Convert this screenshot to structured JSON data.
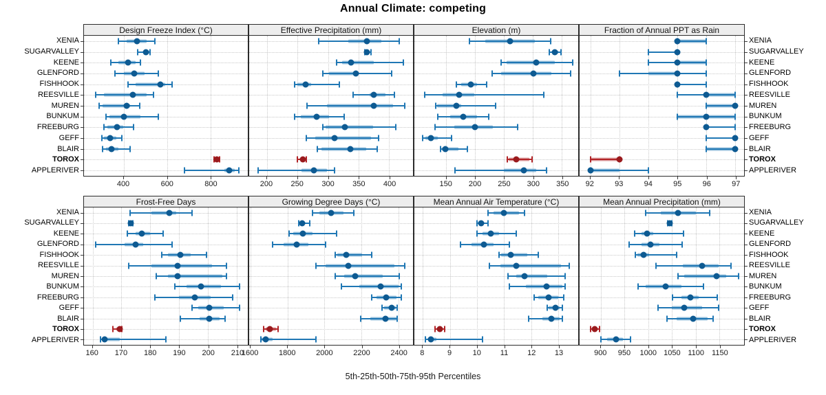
{
  "title": "Annual Climate: competing",
  "footer": "5th-25th-50th-75th-95th Percentiles",
  "highlight_station": "TOROX",
  "stations": [
    "XENIA",
    "SUGARVALLEY",
    "KEENE",
    "GLENFORD",
    "FISHHOOK",
    "REESVILLE",
    "MUREN",
    "BUNKUM",
    "FREEBURG",
    "GEFF",
    "BLAIR",
    "TOROX",
    "APPLERIVER"
  ],
  "colors": {
    "normal": {
      "line": "#1f77b4",
      "band": "rgba(31,119,180,0.45)",
      "dot": "#0d5a92"
    },
    "highlight": {
      "line": "#b22427",
      "band": "rgba(178,36,39,0.45)",
      "dot": "#9a1a1d"
    },
    "grid": "#c8c8c8",
    "strip_bg": "#ededed",
    "frame": "#2b2b2b"
  },
  "chart_data": [
    {
      "type": "dotplot-interval",
      "title": "Design Freeze Index (°C)",
      "percentiles": [
        "5th",
        "25th",
        "50th",
        "75th",
        "95th"
      ],
      "xlim": [
        218,
        971
      ],
      "ticks": [
        400,
        600,
        800
      ],
      "series": {
        "XENIA": [
          375,
          413,
          463,
          505,
          545
        ],
        "SUGARVALLEY": [
          466,
          492,
          504,
          518,
          523
        ],
        "KEENE": [
          340,
          377,
          422,
          455,
          476
        ],
        "GLENFORD": [
          360,
          403,
          450,
          497,
          560
        ],
        "FISHHOOK": [
          419,
          455,
          568,
          591,
          622
        ],
        "REESVILLE": [
          272,
          309,
          442,
          507,
          539
        ],
        "MUREN": [
          288,
          304,
          414,
          429,
          474
        ],
        "BUNKUM": [
          320,
          335,
          400,
          476,
          560
        ],
        "FREEBURG": [
          309,
          325,
          370,
          398,
          445
        ],
        "GEFF": [
          299,
          309,
          338,
          366,
          393
        ],
        "BLAIR": [
          304,
          318,
          346,
          377,
          430
        ],
        "TOROX": [
          816,
          822,
          829,
          835,
          840
        ],
        "APPLERIVER": [
          680,
          862,
          884,
          912,
          930
        ]
      }
    },
    {
      "type": "dotplot-interval",
      "title": "Effective Precipitation (mm)",
      "percentiles": [
        "5th",
        "25th",
        "50th",
        "75th",
        "95th"
      ],
      "xlim": [
        171,
        439
      ],
      "ticks": [
        200,
        250,
        300,
        350,
        400
      ],
      "series": {
        "XENIA": [
          285,
          333,
          363,
          387,
          416
        ],
        "SUGARVALLEY": [
          360,
          362,
          364,
          367,
          370
        ],
        "KEENE": [
          314,
          323,
          338,
          375,
          423
        ],
        "GLENFORD": [
          292,
          302,
          345,
          350,
          404
        ],
        "FISHHOOK": [
          245,
          250,
          263,
          272,
          318
        ],
        "REESVILLE": [
          341,
          368,
          375,
          394,
          409
        ],
        "MUREN": [
          266,
          298,
          375,
          406,
          425
        ],
        "BUNKUM": [
          245,
          255,
          281,
          302,
          326
        ],
        "FREEBURG": [
          292,
          296,
          327,
          374,
          411
        ],
        "GEFF": [
          264,
          279,
          311,
          370,
          383
        ],
        "BLAIR": [
          283,
          289,
          337,
          362,
          380
        ],
        "TOROX": [
          250,
          254,
          259,
          262,
          265
        ],
        "APPLERIVER": [
          186,
          257,
          277,
          298,
          311
        ]
      }
    },
    {
      "type": "dotplot-interval",
      "title": "Elevation (m)",
      "percentiles": [
        "5th",
        "25th",
        "50th",
        "75th",
        "95th"
      ],
      "xlim": [
        95,
        378
      ],
      "ticks": [
        150,
        200,
        250,
        300,
        350
      ],
      "series": {
        "XENIA": [
          190,
          218,
          260,
          303,
          331
        ],
        "SUGARVALLEY": [
          328,
          333,
          338,
          343,
          348
        ],
        "KEENE": [
          245,
          254,
          306,
          338,
          368
        ],
        "GLENFORD": [
          229,
          245,
          301,
          332,
          365
        ],
        "FISHHOOK": [
          168,
          176,
          193,
          203,
          220
        ],
        "REESVILLE": [
          113,
          144,
          172,
          199,
          318
        ],
        "MUREN": [
          132,
          134,
          167,
          176,
          235
        ],
        "BUNKUM": [
          136,
          157,
          180,
          203,
          224
        ],
        "FREEBURG": [
          131,
          164,
          200,
          231,
          273
        ],
        "GEFF": [
          109,
          114,
          124,
          136,
          159
        ],
        "BLAIR": [
          140,
          143,
          149,
          171,
          186
        ],
        "TOROX": [
          255,
          258,
          271,
          293,
          298
        ],
        "APPLERIVER": [
          165,
          250,
          284,
          306,
          323
        ]
      }
    },
    {
      "type": "dotplot-interval",
      "title": "Fraction of Annual PPT as Rain",
      "percentiles": [
        "5th",
        "25th",
        "50th",
        "75th",
        "95th"
      ],
      "xlim": [
        91.63,
        97.3
      ],
      "ticks": [
        92,
        93,
        94,
        95,
        96,
        97
      ],
      "series": {
        "XENIA": [
          95,
          95,
          95,
          96,
          96
        ],
        "SUGARVALLEY": [
          94,
          95,
          95,
          95,
          95
        ],
        "KEENE": [
          94,
          95,
          95,
          96,
          96
        ],
        "GLENFORD": [
          93,
          94,
          95,
          95,
          96
        ],
        "FISHHOOK": [
          95,
          95,
          95,
          95,
          96
        ],
        "REESVILLE": [
          95,
          96,
          96,
          97,
          97
        ],
        "MUREN": [
          96,
          96,
          97,
          97,
          97
        ],
        "BUNKUM": [
          95,
          95,
          96,
          97,
          97
        ],
        "FREEBURG": [
          96,
          96,
          96,
          96,
          97
        ],
        "GEFF": [
          96,
          97,
          97,
          97,
          97
        ],
        "BLAIR": [
          96,
          96,
          97,
          97,
          97
        ],
        "TOROX": [
          92,
          92,
          93,
          93,
          93
        ],
        "APPLERIVER": [
          92,
          92,
          92,
          93,
          94
        ]
      }
    },
    {
      "type": "dotplot-interval",
      "title": "Frost-Free Days",
      "percentiles": [
        "5th",
        "25th",
        "50th",
        "75th",
        "95th"
      ],
      "xlim": [
        157,
        213.8
      ],
      "ticks": [
        160,
        170,
        180,
        190,
        200,
        210
      ],
      "series": {
        "XENIA": [
          173,
          180.5,
          186.5,
          189,
          194.5
        ],
        "SUGARVALLEY": [
          172.5,
          173,
          173.2,
          173.6,
          174
        ],
        "KEENE": [
          172,
          175,
          177,
          180,
          184.5
        ],
        "GLENFORD": [
          161,
          171,
          175,
          177.5,
          187.5
        ],
        "FISHHOOK": [
          184,
          186,
          190.5,
          194,
          199.5
        ],
        "REESVILLE": [
          172.5,
          180.5,
          189.5,
          201.5,
          206.5
        ],
        "MUREN": [
          182,
          186,
          189.5,
          205,
          206.5
        ],
        "BUNKUM": [
          188.5,
          192.5,
          197.5,
          204.5,
          211
        ],
        "FREEBURG": [
          181.5,
          190,
          195.5,
          201,
          208.5
        ],
        "GEFF": [
          194.5,
          196.5,
          200.5,
          205.5,
          211
        ],
        "BLAIR": [
          190.5,
          197,
          200.5,
          204,
          206
        ],
        "TOROX": [
          167,
          168.3,
          169.3,
          169.8,
          170.2
        ],
        "APPLERIVER": [
          162.7,
          163.1,
          164.1,
          169.3,
          185.5
        ]
      }
    },
    {
      "type": "dotplot-interval",
      "title": "Growing Degree Days (°C)",
      "percentiles": [
        "5th",
        "25th",
        "50th",
        "75th",
        "95th"
      ],
      "xlim": [
        1592,
        2479
      ],
      "ticks": [
        1600,
        1800,
        2000,
        2200,
        2400
      ],
      "series": {
        "XENIA": [
          1936,
          1971,
          2037,
          2102,
          2157
        ],
        "SUGARVALLEY": [
          1860,
          1872,
          1880,
          1892,
          1921
        ],
        "KEENE": [
          1807,
          1832,
          1883,
          1936,
          2065
        ],
        "GLENFORD": [
          1718,
          1777,
          1848,
          1914,
          2007
        ],
        "FISHHOOK": [
          2056,
          2069,
          2118,
          2204,
          2255
        ],
        "REESVILLE": [
          1955,
          2004,
          2129,
          2378,
          2433
        ],
        "MUREN": [
          2059,
          2108,
          2167,
          2314,
          2405
        ],
        "BUNKUM": [
          2093,
          2188,
          2304,
          2400,
          2415
        ],
        "FREEBURG": [
          2255,
          2282,
          2335,
          2390,
          2417
        ],
        "GEFF": [
          2310,
          2323,
          2362,
          2384,
          2395
        ],
        "BLAIR": [
          2196,
          2249,
          2331,
          2388,
          2395
        ],
        "TOROX": [
          1672,
          1681,
          1703,
          1737,
          1750
        ],
        "APPLERIVER": [
          1654,
          1660,
          1681,
          1718,
          1955
        ]
      }
    },
    {
      "type": "dotplot-interval",
      "title": "Mean Annual Air Temperature (°C)",
      "percentiles": [
        "5th",
        "25th",
        "50th",
        "75th",
        "95th"
      ],
      "xlim": [
        7.69,
        13.73
      ],
      "ticks": [
        8,
        9,
        10,
        11,
        12,
        13
      ],
      "series": {
        "XENIA": [
          10.4,
          10.6,
          11.0,
          11.55,
          11.75
        ],
        "SUGARVALLEY": [
          10.0,
          10.1,
          10.15,
          10.25,
          10.4
        ],
        "KEENE": [
          10.0,
          10.2,
          10.5,
          10.8,
          11.45
        ],
        "GLENFORD": [
          9.4,
          9.8,
          10.25,
          10.6,
          11.2
        ],
        "FISHHOOK": [
          10.8,
          10.9,
          11.25,
          11.85,
          12.25
        ],
        "REESVILLE": [
          10.45,
          10.85,
          11.45,
          13.1,
          13.4
        ],
        "MUREN": [
          11.15,
          11.45,
          11.75,
          12.6,
          13.25
        ],
        "BUNKUM": [
          11.2,
          11.8,
          12.55,
          13.15,
          13.25
        ],
        "FREEBURG": [
          12.1,
          12.25,
          12.65,
          13.0,
          13.2
        ],
        "GEFF": [
          12.6,
          12.65,
          12.9,
          13.05,
          13.15
        ],
        "BLAIR": [
          11.9,
          12.4,
          12.75,
          13.05,
          13.15
        ],
        "TOROX": [
          8.45,
          8.55,
          8.62,
          8.72,
          8.8
        ],
        "APPLERIVER": [
          8.1,
          8.2,
          8.3,
          8.5,
          10.2
        ]
      }
    },
    {
      "type": "dotplot-interval",
      "title": "Mean Annual Precipitation (mm)",
      "percentiles": [
        "5th",
        "25th",
        "50th",
        "75th",
        "95th"
      ],
      "xlim": [
        855,
        1202
      ],
      "ticks": [
        900,
        950,
        1000,
        1050,
        1100,
        1150
      ],
      "series": {
        "XENIA": [
          995,
          1027,
          1062,
          1100,
          1130
        ],
        "SUGARVALLEY": [
          1041,
          1043,
          1045,
          1047,
          1049
        ],
        "KEENE": [
          971,
          985,
          998,
          1010,
          1074
        ],
        "GLENFORD": [
          960,
          986,
          1005,
          1024,
          1072
        ],
        "FISHHOOK": [
          973,
          977,
          990,
          1002,
          1060
        ],
        "REESVILLE": [
          1016,
          1073,
          1113,
          1148,
          1175
        ],
        "MUREN": [
          1062,
          1075,
          1144,
          1164,
          1190
        ],
        "BUNKUM": [
          979,
          994,
          1037,
          1070,
          1117
        ],
        "FREEBURG": [
          1051,
          1070,
          1089,
          1106,
          1145
        ],
        "GEFF": [
          1020,
          1050,
          1075,
          1113,
          1149
        ],
        "BLAIR": [
          1039,
          1060,
          1094,
          1125,
          1136
        ],
        "TOROX": [
          878,
          882,
          887,
          893,
          897
        ],
        "APPLERIVER": [
          900,
          913,
          932,
          947,
          963
        ]
      }
    }
  ]
}
